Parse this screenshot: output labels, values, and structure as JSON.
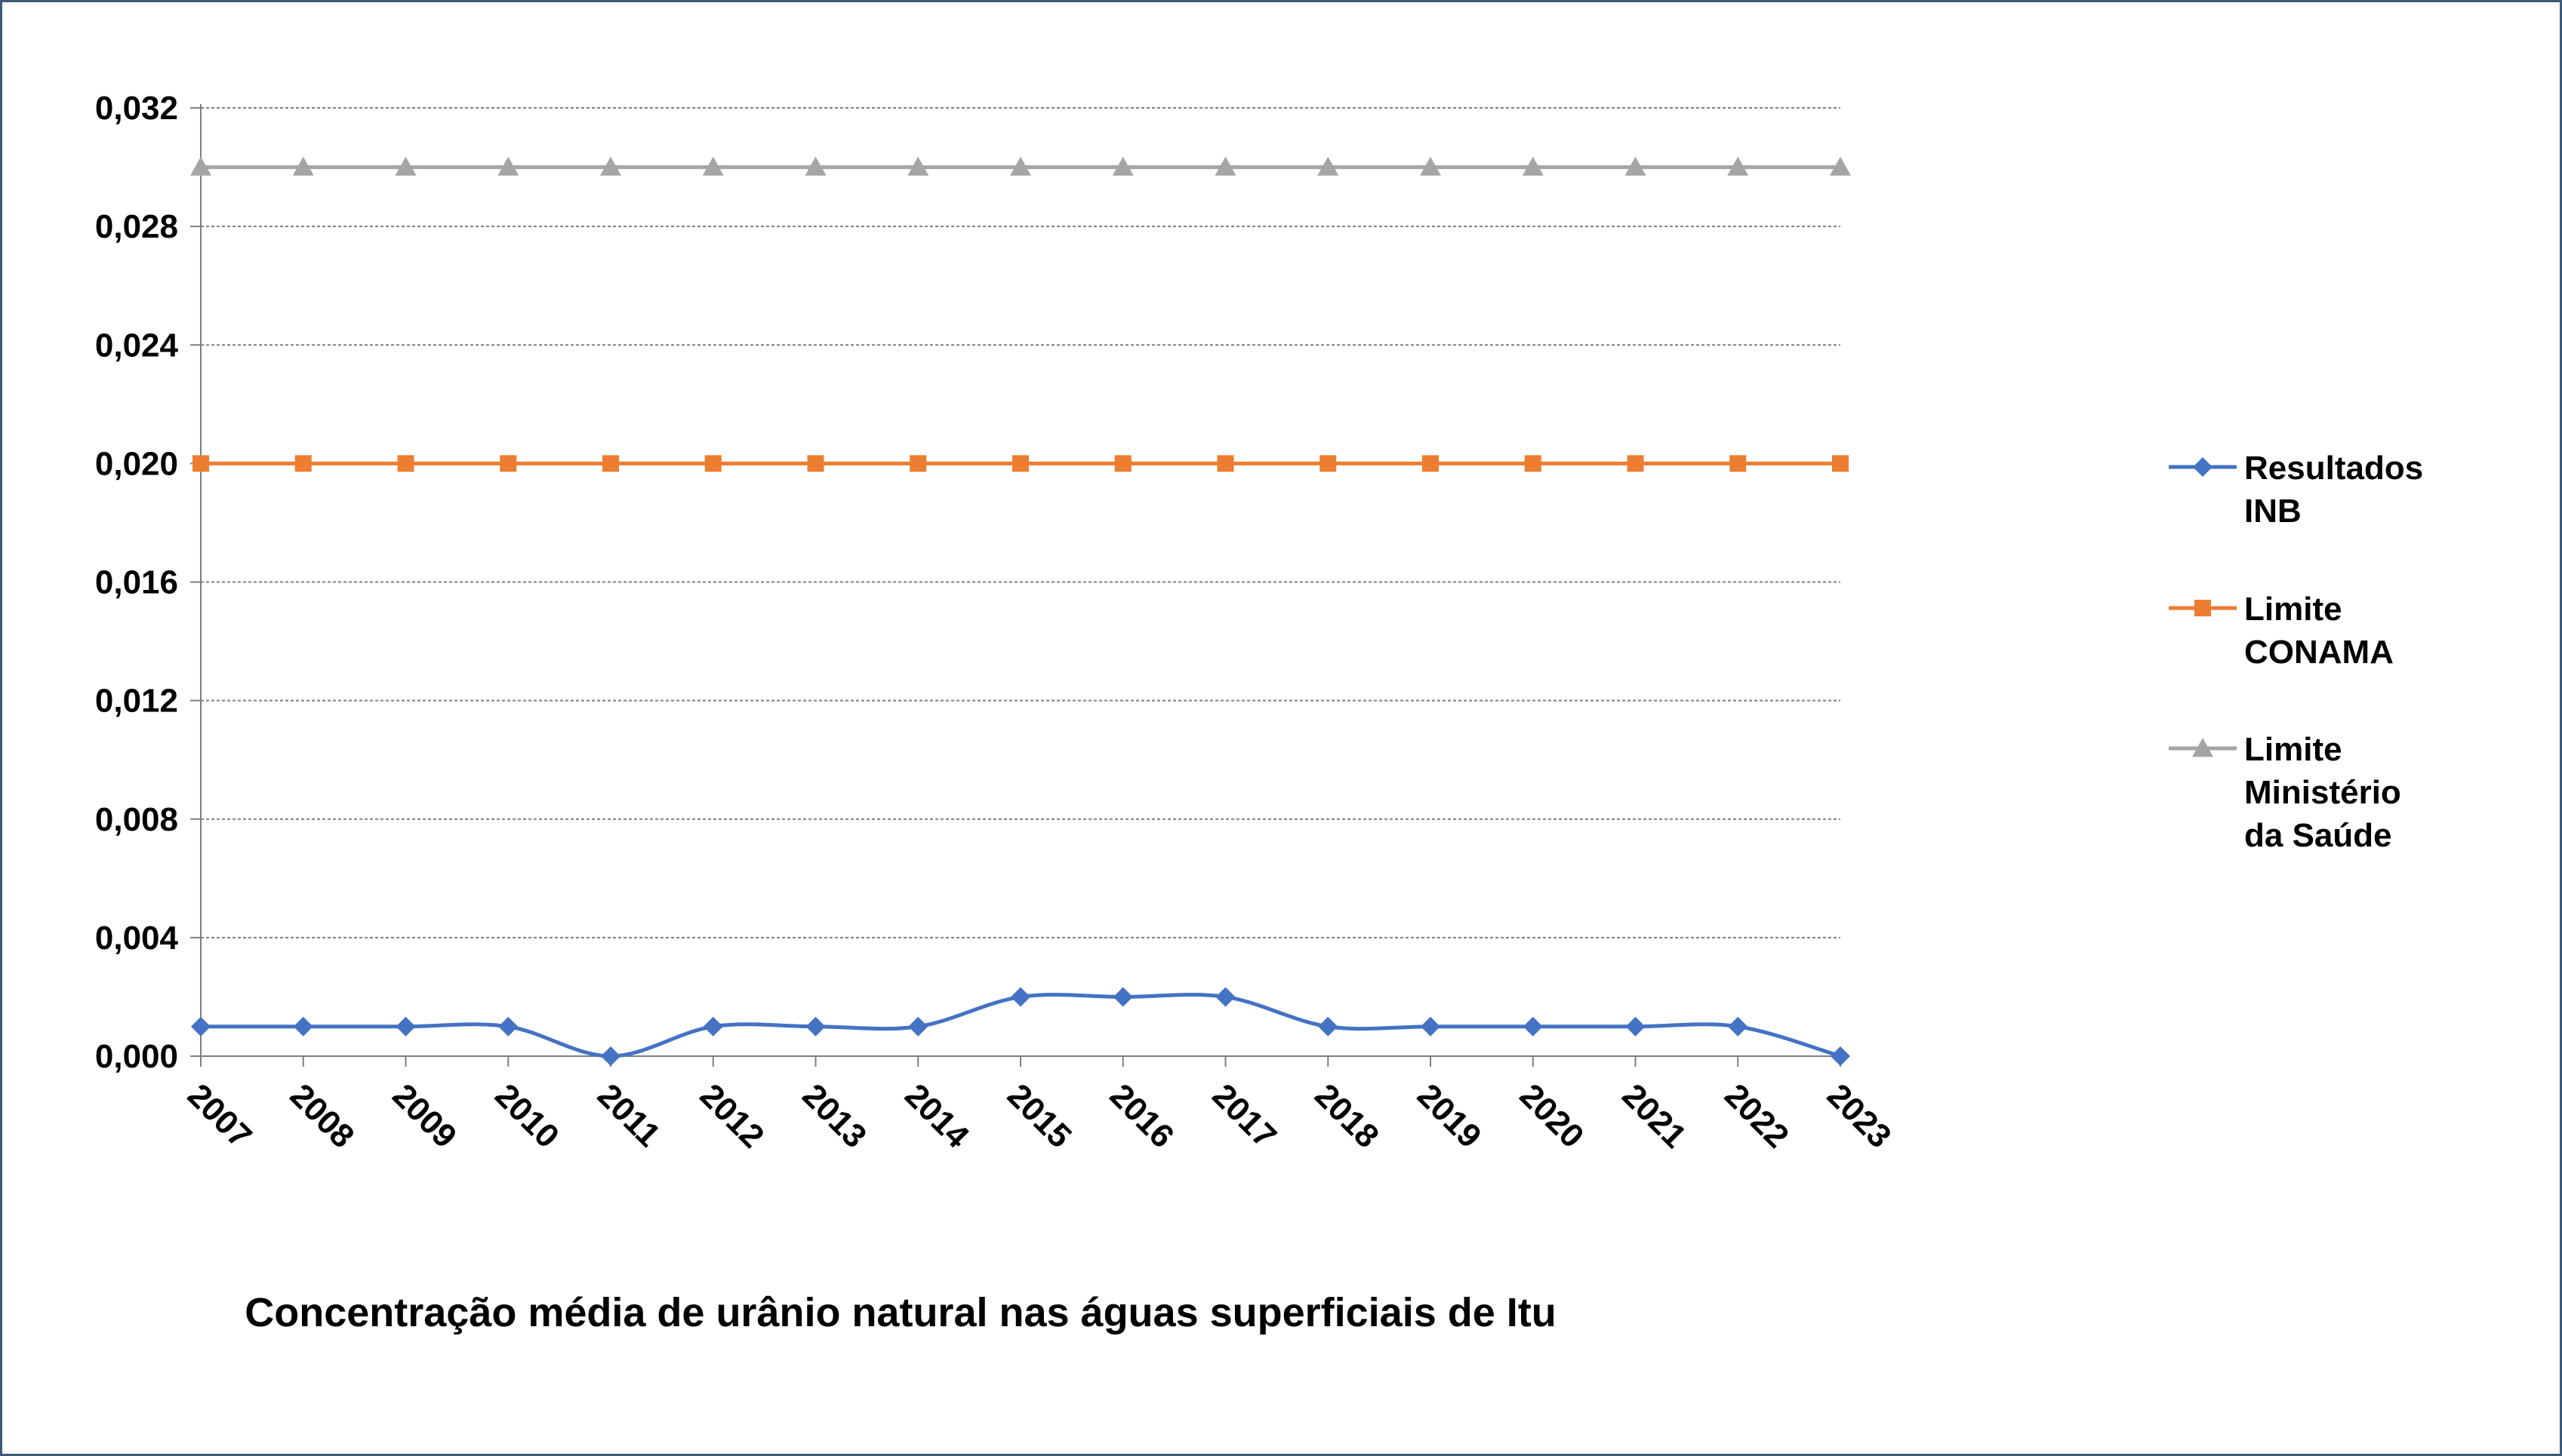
{
  "chart_data": {
    "type": "line",
    "title": "Concentração média de urânio natural nas águas superficiais de Itu",
    "xlabel": "",
    "ylabel": "",
    "categories": [
      "2007",
      "2008",
      "2009",
      "2010",
      "2011",
      "2012",
      "2013",
      "2014",
      "2015",
      "2016",
      "2017",
      "2018",
      "2019",
      "2020",
      "2021",
      "2022",
      "2023"
    ],
    "y_ticks": [
      "0,000",
      "0,004",
      "0,008",
      "0,012",
      "0,016",
      "0,020",
      "0,024",
      "0,028",
      "0,032"
    ],
    "ylim": [
      0,
      0.032
    ],
    "grid": "horizontal-dashed",
    "legend_position": "right",
    "series": [
      {
        "name": "Resultados INB",
        "legend_lines": [
          "Resultados",
          "INB"
        ],
        "color": "#4472c4",
        "marker": "diamond",
        "smooth": true,
        "values": [
          0.001,
          0.001,
          0.001,
          0.001,
          0.0,
          0.001,
          0.001,
          0.001,
          0.002,
          0.002,
          0.002,
          0.001,
          0.001,
          0.001,
          0.001,
          0.001,
          0.0
        ]
      },
      {
        "name": "Limite CONAMA",
        "legend_lines": [
          "Limite",
          "CONAMA"
        ],
        "color": "#ed7d31",
        "marker": "square",
        "smooth": false,
        "values": [
          0.02,
          0.02,
          0.02,
          0.02,
          0.02,
          0.02,
          0.02,
          0.02,
          0.02,
          0.02,
          0.02,
          0.02,
          0.02,
          0.02,
          0.02,
          0.02,
          0.02
        ]
      },
      {
        "name": "Limite Ministério da Saúde",
        "legend_lines": [
          "Limite",
          "Ministério",
          "da Saúde"
        ],
        "color": "#a5a5a5",
        "marker": "triangle",
        "smooth": false,
        "values": [
          0.03,
          0.03,
          0.03,
          0.03,
          0.03,
          0.03,
          0.03,
          0.03,
          0.03,
          0.03,
          0.03,
          0.03,
          0.03,
          0.03,
          0.03,
          0.03,
          0.03
        ]
      }
    ]
  }
}
